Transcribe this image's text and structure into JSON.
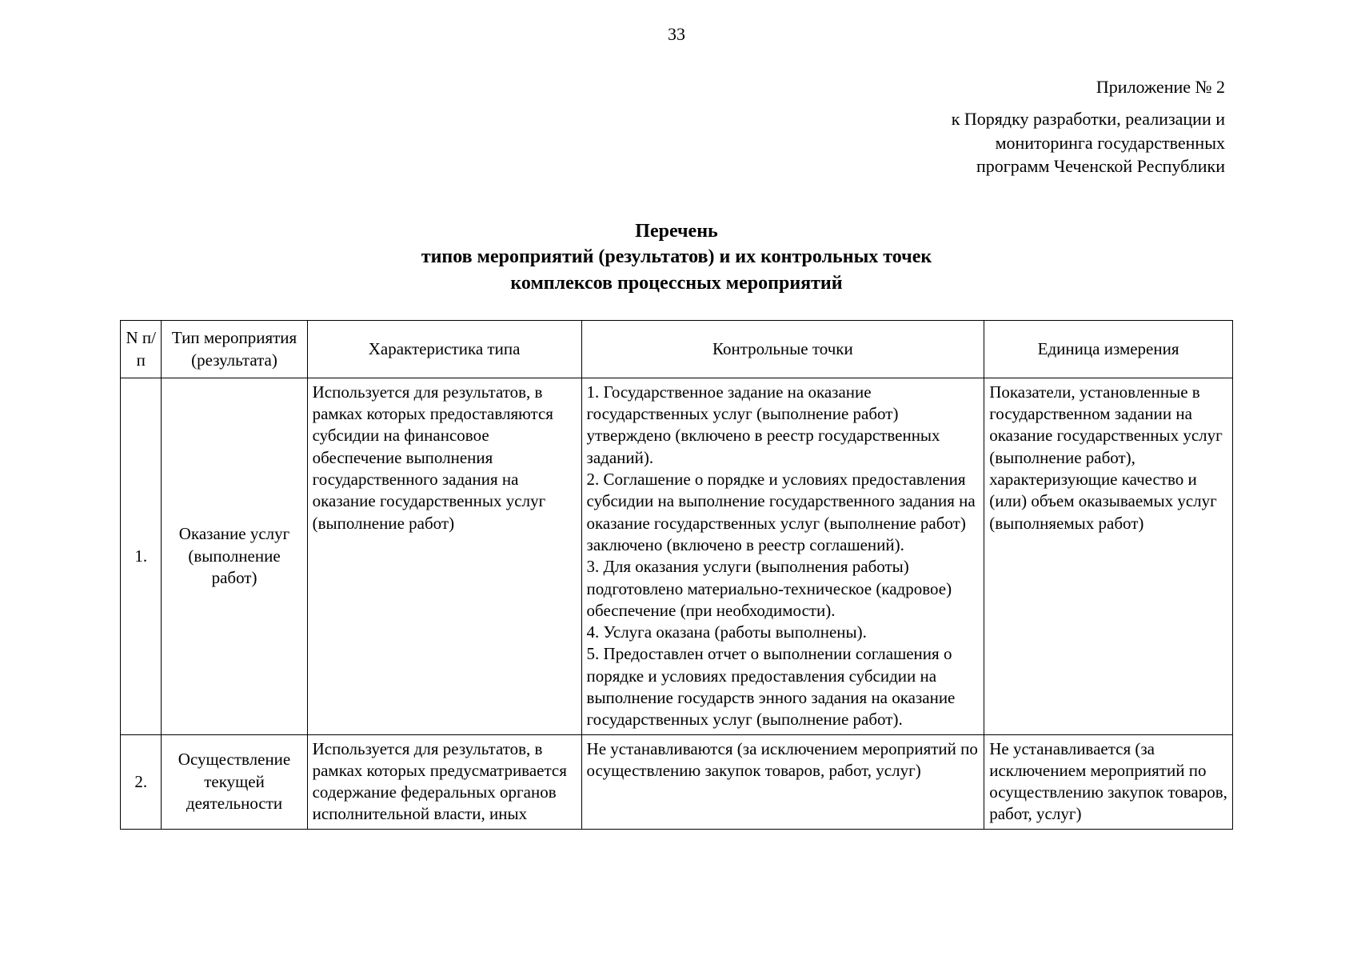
{
  "page_number": "33",
  "attachment_label": "Приложение № 2",
  "preamble_line1": "к Порядку разработки, реализации и",
  "preamble_line2": "мониторинга государственных",
  "preamble_line3": "программ Чеченской Республики",
  "title_line1": "Перечень",
  "title_line2": "типов мероприятий (результатов) и их контрольных точек",
  "title_line3": "комплексов процессных мероприятий",
  "table": {
    "columns": {
      "n": "N п/п",
      "type": "Тип мероприятия (результата)",
      "characteristic": "Характеристика типа",
      "control_points": "Контрольные точки",
      "unit": "Единица измерения"
    },
    "rows": [
      {
        "n": "1.",
        "type": "Оказание услуг (выполнение работ)",
        "characteristic": "Используется для результатов, в рамках которых предоставляются субсидии на финансовое обеспечение выполнения государственного задания на оказание государственных услуг (выполнение работ)",
        "control_points": "1. Государственное задание на оказание государственных услуг (выполнение работ) утверждено (включено в реестр государственных заданий).\n2. Соглашение о порядке и условиях предоставления субсидии на выполнение государственного задания на оказание государственных услуг (выполнение работ) заключено (включено в реестр соглашений).\n3. Для оказания услуги (выполнения работы) подготовлено материально-техническое (кадровое) обеспечение (при необходимости).\n4. Услуга оказана (работы выполнены).\n5. Предоставлен отчет о выполнении соглашения о порядке и условиях предоставления субсидии на выполнение государств энного задания на оказание государственных услуг (выполнение работ).",
        "unit": "Показатели, установленные в государственном задании на оказание государственных услуг (выполнение работ), характеризующие качество и (или) объем оказываемых услуг (выполняемых работ)"
      },
      {
        "n": "2.",
        "type": "Осуществление текущей деятельности",
        "characteristic": "Используется для результатов, в рамках которых предусматривается содержание федеральных органов исполнительной власти, иных",
        "control_points": "Не устанавливаются (за исключением мероприятий по осуществлению закупок товаров, работ, услуг)",
        "unit": "Не устанавливается (за исключением мероприятий по осуществлению закупок товаров, работ, услуг)"
      }
    ]
  }
}
